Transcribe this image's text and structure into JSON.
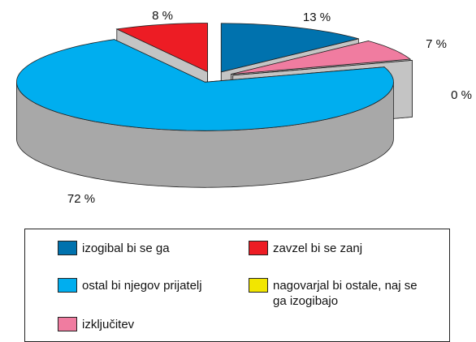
{
  "chart_data": {
    "type": "pie",
    "categories": [
      "izogibal bi se ga",
      "izključitev",
      "nagovarjal bi ostale, naj se ga izogibajo",
      "ostal bi njegov prijatelj",
      "zavzel bi se zanj"
    ],
    "values": [
      13,
      7,
      0,
      72,
      8
    ],
    "value_labels": [
      "13 %",
      "7 %",
      "0 %",
      "72 %",
      "8 %"
    ],
    "colors": [
      "#0072ae",
      "#f07ca0",
      "#f2e600",
      "#00aeef",
      "#ed1c24"
    ],
    "legend": "bottom"
  }
}
